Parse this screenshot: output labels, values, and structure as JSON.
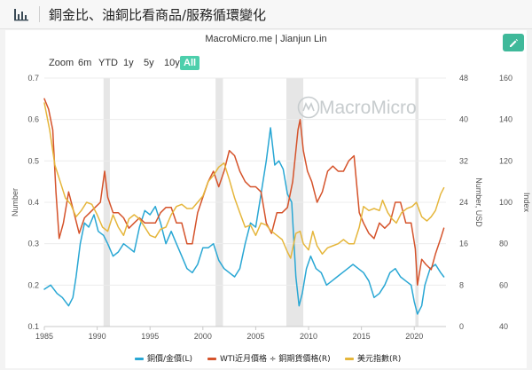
{
  "page": {
    "title": "銅金比、油銅比看商品/服務循環變化",
    "icon": "bar-chart-icon",
    "edit_icon": "pencil-icon",
    "accent_color": "#4dcfac"
  },
  "source": "MacroMicro.me | Jianjun Lin",
  "watermark": "MacroMicro",
  "zoom": {
    "label": "Zoom",
    "options": [
      "6m",
      "YTD",
      "1y",
      "5y",
      "10y",
      "All"
    ],
    "selected": "All"
  },
  "chart_data": {
    "type": "line",
    "x_range": [
      1985,
      2023
    ],
    "x_ticks": [
      "1985",
      "1990",
      "1995",
      "2000",
      "2005",
      "2010",
      "2015",
      "2020"
    ],
    "axes": {
      "left": {
        "label": "Number",
        "range": [
          0.1,
          0.7
        ],
        "ticks": [
          "0.1",
          "0.2",
          "0.3",
          "0.4",
          "0.5",
          "0.6",
          "0.7"
        ]
      },
      "right1": {
        "label": "Number, USD",
        "range": [
          0,
          48
        ],
        "ticks": [
          "0",
          "8",
          "16",
          "24",
          "32",
          "40",
          "48"
        ]
      },
      "right2": {
        "label": "Index",
        "range": [
          40,
          160
        ],
        "ticks": [
          "40",
          "60",
          "80",
          "100",
          "120",
          "140",
          "160"
        ]
      }
    },
    "recession_bands": [
      [
        1990.6,
        1991.2
      ],
      [
        2001.2,
        2001.9
      ],
      [
        2007.9,
        2009.5
      ],
      [
        2020.1,
        2020.4
      ]
    ],
    "series": [
      {
        "name": "銅價/金價(L)",
        "axis": "left",
        "color": "#29a7d4",
        "points": [
          [
            1985.0,
            0.19
          ],
          [
            1985.6,
            0.2
          ],
          [
            1986.2,
            0.18
          ],
          [
            1986.7,
            0.17
          ],
          [
            1987.3,
            0.15
          ],
          [
            1987.7,
            0.17
          ],
          [
            1988.0,
            0.22
          ],
          [
            1988.4,
            0.3
          ],
          [
            1988.8,
            0.35
          ],
          [
            1989.2,
            0.34
          ],
          [
            1989.7,
            0.37
          ],
          [
            1990.1,
            0.33
          ],
          [
            1990.6,
            0.32
          ],
          [
            1991.0,
            0.3
          ],
          [
            1991.5,
            0.27
          ],
          [
            1992.0,
            0.28
          ],
          [
            1992.5,
            0.3
          ],
          [
            1993.0,
            0.29
          ],
          [
            1993.5,
            0.28
          ],
          [
            1994.0,
            0.34
          ],
          [
            1994.5,
            0.38
          ],
          [
            1995.0,
            0.37
          ],
          [
            1995.5,
            0.39
          ],
          [
            1996.0,
            0.35
          ],
          [
            1996.5,
            0.3
          ],
          [
            1997.0,
            0.33
          ],
          [
            1997.5,
            0.3
          ],
          [
            1998.0,
            0.27
          ],
          [
            1998.5,
            0.24
          ],
          [
            1999.0,
            0.23
          ],
          [
            1999.5,
            0.25
          ],
          [
            2000.0,
            0.29
          ],
          [
            2000.5,
            0.29
          ],
          [
            2001.0,
            0.3
          ],
          [
            2001.5,
            0.26
          ],
          [
            2002.0,
            0.24
          ],
          [
            2002.5,
            0.23
          ],
          [
            2003.0,
            0.22
          ],
          [
            2003.5,
            0.24
          ],
          [
            2004.0,
            0.3
          ],
          [
            2004.5,
            0.35
          ],
          [
            2005.0,
            0.34
          ],
          [
            2005.5,
            0.42
          ],
          [
            2006.0,
            0.5
          ],
          [
            2006.4,
            0.58
          ],
          [
            2006.8,
            0.49
          ],
          [
            2007.2,
            0.5
          ],
          [
            2007.6,
            0.48
          ],
          [
            2008.0,
            0.42
          ],
          [
            2008.4,
            0.4
          ],
          [
            2008.8,
            0.22
          ],
          [
            2009.1,
            0.15
          ],
          [
            2009.4,
            0.18
          ],
          [
            2009.8,
            0.24
          ],
          [
            2010.2,
            0.27
          ],
          [
            2010.7,
            0.24
          ],
          [
            2011.2,
            0.23
          ],
          [
            2011.7,
            0.2
          ],
          [
            2012.2,
            0.21
          ],
          [
            2012.7,
            0.22
          ],
          [
            2013.2,
            0.23
          ],
          [
            2013.7,
            0.24
          ],
          [
            2014.2,
            0.25
          ],
          [
            2014.7,
            0.24
          ],
          [
            2015.2,
            0.23
          ],
          [
            2015.7,
            0.21
          ],
          [
            2016.2,
            0.17
          ],
          [
            2016.7,
            0.18
          ],
          [
            2017.2,
            0.2
          ],
          [
            2017.7,
            0.23
          ],
          [
            2018.2,
            0.24
          ],
          [
            2018.7,
            0.22
          ],
          [
            2019.2,
            0.21
          ],
          [
            2019.7,
            0.2
          ],
          [
            2020.0,
            0.16
          ],
          [
            2020.3,
            0.13
          ],
          [
            2020.7,
            0.15
          ],
          [
            2021.0,
            0.2
          ],
          [
            2021.5,
            0.24
          ],
          [
            2022.0,
            0.25
          ],
          [
            2022.5,
            0.23
          ],
          [
            2022.8,
            0.22
          ]
        ]
      },
      {
        "name": "WTI近月價格 ÷ 銅期貨價格(R)",
        "axis": "right1",
        "color": "#d5532b",
        "points": [
          [
            1985.0,
            44
          ],
          [
            1985.4,
            42
          ],
          [
            1985.8,
            38
          ],
          [
            1986.1,
            26
          ],
          [
            1986.4,
            17
          ],
          [
            1986.8,
            20
          ],
          [
            1987.3,
            26
          ],
          [
            1987.8,
            22
          ],
          [
            1988.3,
            18
          ],
          [
            1988.8,
            21
          ],
          [
            1989.3,
            22
          ],
          [
            1989.8,
            23
          ],
          [
            1990.3,
            24
          ],
          [
            1990.7,
            30
          ],
          [
            1991.0,
            25
          ],
          [
            1991.5,
            22
          ],
          [
            1992.0,
            22
          ],
          [
            1992.5,
            21
          ],
          [
            1993.0,
            19
          ],
          [
            1993.5,
            20
          ],
          [
            1994.0,
            21
          ],
          [
            1994.5,
            20
          ],
          [
            1995.0,
            20
          ],
          [
            1995.5,
            20
          ],
          [
            1996.0,
            22
          ],
          [
            1996.5,
            23
          ],
          [
            1997.0,
            23
          ],
          [
            1997.5,
            20
          ],
          [
            1998.0,
            20
          ],
          [
            1998.5,
            16
          ],
          [
            1999.0,
            16
          ],
          [
            1999.5,
            22
          ],
          [
            2000.0,
            25
          ],
          [
            2000.5,
            28
          ],
          [
            2001.0,
            30
          ],
          [
            2001.5,
            27
          ],
          [
            2002.0,
            30
          ],
          [
            2002.5,
            34
          ],
          [
            2003.0,
            33
          ],
          [
            2003.5,
            30
          ],
          [
            2004.0,
            28
          ],
          [
            2004.5,
            27
          ],
          [
            2005.0,
            27
          ],
          [
            2005.5,
            26
          ],
          [
            2006.0,
            20
          ],
          [
            2006.5,
            18
          ],
          [
            2007.0,
            22
          ],
          [
            2007.5,
            22
          ],
          [
            2008.0,
            23
          ],
          [
            2008.5,
            28
          ],
          [
            2008.8,
            34
          ],
          [
            2009.0,
            38
          ],
          [
            2009.2,
            40
          ],
          [
            2009.5,
            34
          ],
          [
            2009.9,
            30
          ],
          [
            2010.3,
            28
          ],
          [
            2010.8,
            24
          ],
          [
            2011.3,
            26
          ],
          [
            2011.8,
            30
          ],
          [
            2012.3,
            31
          ],
          [
            2012.8,
            30
          ],
          [
            2013.3,
            30
          ],
          [
            2013.8,
            32
          ],
          [
            2014.3,
            33
          ],
          [
            2014.8,
            22
          ],
          [
            2015.2,
            20
          ],
          [
            2015.7,
            18
          ],
          [
            2016.2,
            17
          ],
          [
            2016.7,
            20
          ],
          [
            2017.2,
            19
          ],
          [
            2017.7,
            20
          ],
          [
            2018.2,
            24
          ],
          [
            2018.7,
            24
          ],
          [
            2019.2,
            20
          ],
          [
            2019.7,
            20
          ],
          [
            2020.1,
            15
          ],
          [
            2020.3,
            8
          ],
          [
            2020.7,
            13
          ],
          [
            2021.1,
            12
          ],
          [
            2021.6,
            11
          ],
          [
            2022.0,
            14
          ],
          [
            2022.5,
            17
          ],
          [
            2022.8,
            19
          ]
        ]
      },
      {
        "name": "美元指數(R)",
        "axis": "right2",
        "color": "#e5b63b",
        "points": [
          [
            1985.0,
            148
          ],
          [
            1985.5,
            135
          ],
          [
            1986.0,
            118
          ],
          [
            1986.5,
            110
          ],
          [
            1987.0,
            102
          ],
          [
            1987.5,
            99
          ],
          [
            1988.0,
            93
          ],
          [
            1988.5,
            96
          ],
          [
            1989.0,
            100
          ],
          [
            1989.5,
            99
          ],
          [
            1990.0,
            94
          ],
          [
            1990.5,
            88
          ],
          [
            1991.0,
            86
          ],
          [
            1991.5,
            94
          ],
          [
            1992.0,
            88
          ],
          [
            1992.5,
            84
          ],
          [
            1993.0,
            92
          ],
          [
            1993.5,
            94
          ],
          [
            1994.0,
            92
          ],
          [
            1994.5,
            88
          ],
          [
            1995.0,
            84
          ],
          [
            1995.5,
            83
          ],
          [
            1996.0,
            87
          ],
          [
            1996.5,
            88
          ],
          [
            1997.0,
            94
          ],
          [
            1997.5,
            98
          ],
          [
            1998.0,
            99
          ],
          [
            1998.5,
            97
          ],
          [
            1999.0,
            97
          ],
          [
            1999.5,
            100
          ],
          [
            2000.0,
            103
          ],
          [
            2000.5,
            110
          ],
          [
            2001.0,
            113
          ],
          [
            2001.5,
            117
          ],
          [
            2002.0,
            119
          ],
          [
            2002.5,
            111
          ],
          [
            2003.0,
            102
          ],
          [
            2003.5,
            95
          ],
          [
            2004.0,
            88
          ],
          [
            2004.5,
            89
          ],
          [
            2005.0,
            84
          ],
          [
            2005.5,
            90
          ],
          [
            2006.0,
            89
          ],
          [
            2006.5,
            86
          ],
          [
            2007.0,
            84
          ],
          [
            2007.5,
            82
          ],
          [
            2008.0,
            76
          ],
          [
            2008.3,
            73
          ],
          [
            2008.8,
            85
          ],
          [
            2009.2,
            86
          ],
          [
            2009.5,
            80
          ],
          [
            2010.0,
            77
          ],
          [
            2010.4,
            86
          ],
          [
            2010.8,
            79
          ],
          [
            2011.3,
            75
          ],
          [
            2011.8,
            78
          ],
          [
            2012.3,
            79
          ],
          [
            2012.8,
            80
          ],
          [
            2013.3,
            82
          ],
          [
            2013.8,
            80
          ],
          [
            2014.3,
            80
          ],
          [
            2014.8,
            88
          ],
          [
            2015.2,
            98
          ],
          [
            2015.7,
            96
          ],
          [
            2016.2,
            97
          ],
          [
            2016.7,
            96
          ],
          [
            2017.0,
            101
          ],
          [
            2017.5,
            95
          ],
          [
            2017.9,
            92
          ],
          [
            2018.3,
            90
          ],
          [
            2018.8,
            95
          ],
          [
            2019.3,
            97
          ],
          [
            2019.8,
            98
          ],
          [
            2020.2,
            100
          ],
          [
            2020.7,
            93
          ],
          [
            2021.2,
            91
          ],
          [
            2021.6,
            93
          ],
          [
            2022.0,
            96
          ],
          [
            2022.5,
            104
          ],
          [
            2022.8,
            107
          ]
        ]
      }
    ]
  }
}
